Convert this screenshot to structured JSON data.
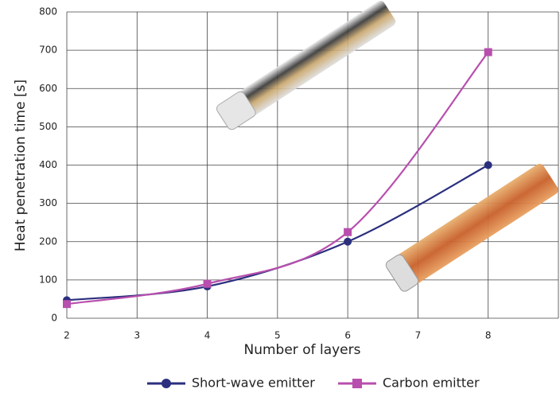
{
  "chart_data": {
    "type": "line",
    "x_label": "Number of layers",
    "y_label": "Heat penetration time [s]",
    "x": [
      2,
      4,
      6,
      8
    ],
    "series": [
      {
        "name": "Short-wave emitter",
        "color": "#2b2f7e",
        "marker": "circle",
        "values": [
          47,
          83,
          200,
          400
        ]
      },
      {
        "name": "Carbon emitter",
        "color": "#b84fae",
        "marker": "square",
        "values": [
          37,
          90,
          225,
          695
        ]
      }
    ],
    "xlim": [
      2,
      9
    ],
    "xticks": [
      2,
      3,
      4,
      5,
      6,
      7,
      8
    ],
    "ylim": [
      0,
      800
    ],
    "yticks": [
      0,
      100,
      200,
      300,
      400,
      500,
      600,
      700,
      800
    ],
    "grid": true
  }
}
